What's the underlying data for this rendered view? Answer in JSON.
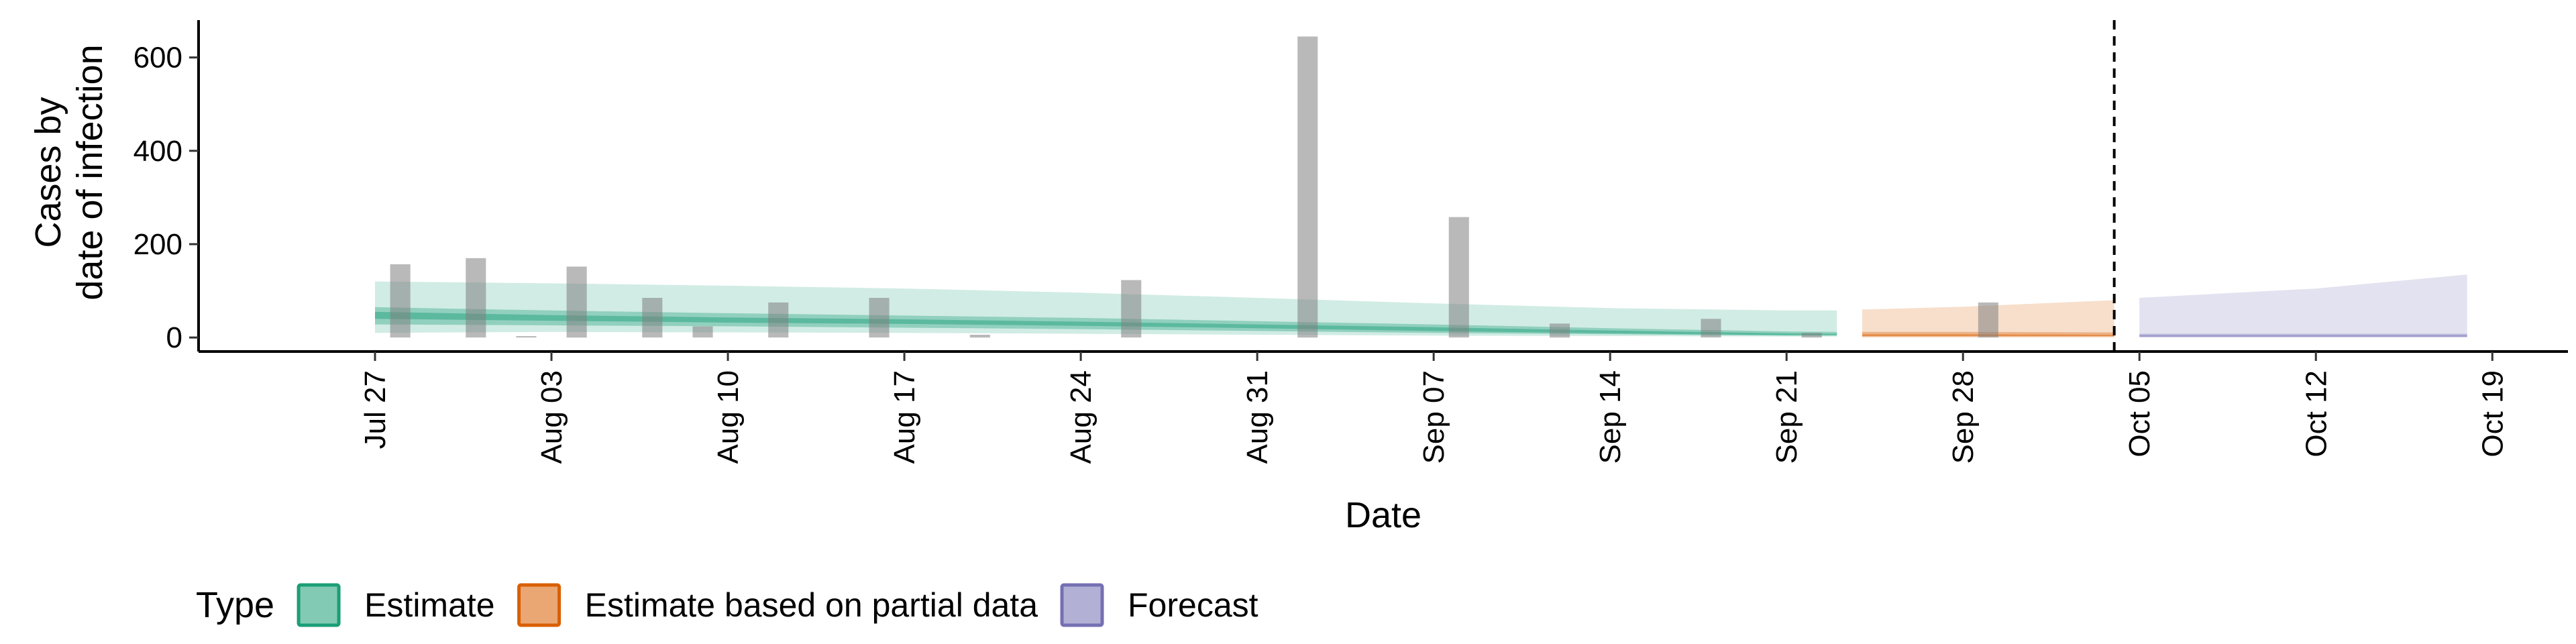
{
  "chart_data": {
    "type": "area",
    "x_label": "Date",
    "y_label_lines": [
      "Cases by",
      "date of infection"
    ],
    "y_ticks": [
      0,
      200,
      400,
      600
    ],
    "y_range": [
      -30,
      680
    ],
    "x_range": [
      "2020-07-20",
      "2020-10-22"
    ],
    "x_ticks": [
      {
        "date": "2020-07-27",
        "label": "Jul 27"
      },
      {
        "date": "2020-08-03",
        "label": "Aug 03"
      },
      {
        "date": "2020-08-10",
        "label": "Aug 10"
      },
      {
        "date": "2020-08-17",
        "label": "Aug 17"
      },
      {
        "date": "2020-08-24",
        "label": "Aug 24"
      },
      {
        "date": "2020-08-31",
        "label": "Aug 31"
      },
      {
        "date": "2020-09-07",
        "label": "Sep 07"
      },
      {
        "date": "2020-09-14",
        "label": "Sep 14"
      },
      {
        "date": "2020-09-21",
        "label": "Sep 21"
      },
      {
        "date": "2020-09-28",
        "label": "Sep 28"
      },
      {
        "date": "2020-10-05",
        "label": "Oct 05"
      },
      {
        "date": "2020-10-12",
        "label": "Oct 12"
      },
      {
        "date": "2020-10-19",
        "label": "Oct 19"
      }
    ],
    "cutoff_date": "2020-10-04",
    "legend": {
      "title": "Type",
      "position": "bottom",
      "items": [
        {
          "label": "Estimate",
          "color": "#1b9e77"
        },
        {
          "label": "Estimate based on partial data",
          "color": "#d95f02"
        },
        {
          "label": "Forecast",
          "color": "#7570b3"
        }
      ]
    },
    "bar_color": "#808080",
    "observed_cases": [
      {
        "date": "2020-07-28",
        "value": 157
      },
      {
        "date": "2020-07-31",
        "value": 170
      },
      {
        "date": "2020-08-02",
        "value": 3
      },
      {
        "date": "2020-08-04",
        "value": 152
      },
      {
        "date": "2020-08-07",
        "value": 85
      },
      {
        "date": "2020-08-09",
        "value": 24
      },
      {
        "date": "2020-08-12",
        "value": 75
      },
      {
        "date": "2020-08-16",
        "value": 85
      },
      {
        "date": "2020-08-20",
        "value": 6
      },
      {
        "date": "2020-08-26",
        "value": 123
      },
      {
        "date": "2020-09-02",
        "value": 645
      },
      {
        "date": "2020-09-08",
        "value": 258
      },
      {
        "date": "2020-09-12",
        "value": 30
      },
      {
        "date": "2020-09-18",
        "value": 40
      },
      {
        "date": "2020-09-22",
        "value": 10
      },
      {
        "date": "2020-09-29",
        "value": 75
      }
    ],
    "series": [
      {
        "name": "Estimate",
        "color": "#1b9e77",
        "points": [
          {
            "date": "2020-07-27",
            "lower90": 10,
            "upper90": 120,
            "lower50": 28,
            "upper50": 65,
            "lower20": 40,
            "upper20": 55
          },
          {
            "date": "2020-08-03",
            "lower90": 12,
            "upper90": 116,
            "lower50": 26,
            "upper50": 58,
            "lower20": 36,
            "upper20": 48
          },
          {
            "date": "2020-08-10",
            "lower90": 11,
            "upper90": 111,
            "lower50": 24,
            "upper50": 52,
            "lower20": 32,
            "upper20": 43
          },
          {
            "date": "2020-08-17",
            "lower90": 10,
            "upper90": 105,
            "lower50": 21,
            "upper50": 47,
            "lower20": 29,
            "upper20": 39
          },
          {
            "date": "2020-08-24",
            "lower90": 8,
            "upper90": 96,
            "lower50": 18,
            "upper50": 42,
            "lower20": 25,
            "upper20": 34
          },
          {
            "date": "2020-08-31",
            "lower90": 6,
            "upper90": 85,
            "lower50": 14,
            "upper50": 35,
            "lower20": 20,
            "upper20": 28
          },
          {
            "date": "2020-09-07",
            "lower90": 4,
            "upper90": 73,
            "lower50": 10,
            "upper50": 28,
            "lower20": 14,
            "upper20": 22
          },
          {
            "date": "2020-09-14",
            "lower90": 3,
            "upper90": 63,
            "lower50": 7,
            "upper50": 20,
            "lower20": 9,
            "upper20": 15
          },
          {
            "date": "2020-09-21",
            "lower90": 2,
            "upper90": 58,
            "lower50": 4,
            "upper50": 13,
            "lower20": 5,
            "upper20": 9
          },
          {
            "date": "2020-09-23",
            "lower90": 2,
            "upper90": 58,
            "lower50": 4,
            "upper50": 12,
            "lower20": 5,
            "upper20": 8
          }
        ]
      },
      {
        "name": "Estimate based on partial data",
        "color": "#d95f02",
        "points": [
          {
            "date": "2020-09-24",
            "lower90": 0,
            "upper90": 60,
            "lower50": 2,
            "upper50": 12,
            "lower20": 3,
            "upper20": 7
          },
          {
            "date": "2020-09-28",
            "lower90": 0,
            "upper90": 66,
            "lower50": 2,
            "upper50": 12,
            "lower20": 3,
            "upper20": 7
          },
          {
            "date": "2020-10-04",
            "lower90": 0,
            "upper90": 80,
            "lower50": 2,
            "upper50": 11,
            "lower20": 3,
            "upper20": 6
          }
        ]
      },
      {
        "name": "Forecast",
        "color": "#7570b3",
        "points": [
          {
            "date": "2020-10-05",
            "lower90": 0,
            "upper90": 85,
            "lower50": 1,
            "upper50": 8,
            "lower20": 2,
            "upper20": 5
          },
          {
            "date": "2020-10-12",
            "lower90": 0,
            "upper90": 105,
            "lower50": 1,
            "upper50": 8,
            "lower20": 2,
            "upper20": 5
          },
          {
            "date": "2020-10-18",
            "lower90": 0,
            "upper90": 135,
            "lower50": 1,
            "upper50": 8,
            "lower20": 2,
            "upper20": 5
          }
        ]
      }
    ]
  }
}
